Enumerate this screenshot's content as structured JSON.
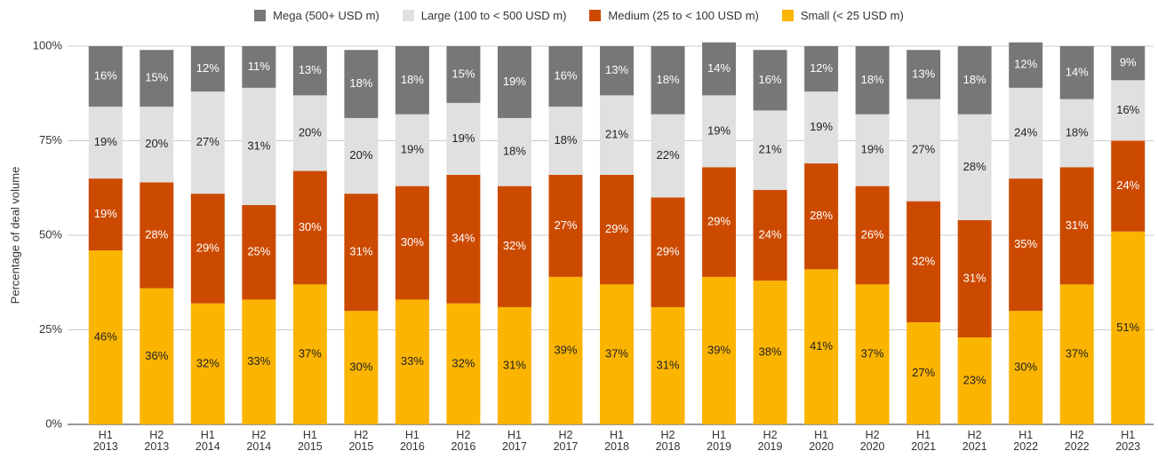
{
  "chart_data": {
    "type": "stacked_bar",
    "y_label": "Percentage of deal volume",
    "categories": [
      "H1 2013",
      "H2 2013",
      "H1 2014",
      "H2 2014",
      "H1 2015",
      "H2 2015",
      "H1 2016",
      "H2 2016",
      "H1 2017",
      "H2 2017",
      "H1 2018",
      "H2 2018",
      "H1 2019",
      "H2 2019",
      "H1 2020",
      "H2 2020",
      "H1 2021",
      "H2 2021",
      "H1 2022",
      "H2 2022",
      "H1 2023"
    ],
    "series": [
      {
        "name": "Small (< 25 USD m)",
        "color": "#fbb400",
        "label_color": "#222",
        "values": [
          46,
          36,
          32,
          33,
          37,
          30,
          33,
          32,
          31,
          39,
          37,
          31,
          39,
          38,
          41,
          37,
          27,
          23,
          30,
          37,
          51
        ],
        "value_labels": [
          "46%",
          "36%",
          "32%",
          "33%",
          "37%",
          "30%",
          "33%",
          "32%",
          "31%",
          "39%",
          "37%",
          "31%",
          "39%",
          "38%",
          "41%",
          "37%",
          "27%",
          "23%",
          "30%",
          "37%",
          "51%"
        ]
      },
      {
        "name": "Medium (25 to < 100 USD m)",
        "color": "#cc4a00",
        "label_color": "#fff",
        "values": [
          19,
          28,
          29,
          25,
          30,
          31,
          30,
          34,
          32,
          27,
          29,
          29,
          29,
          24,
          28,
          26,
          32,
          31,
          35,
          31,
          24
        ],
        "value_labels": [
          "19%",
          "28%",
          "29%",
          "25%",
          "30%",
          "31%",
          "30%",
          "34%",
          "32%",
          "27%",
          "29%",
          "29%",
          "29%",
          "24%",
          "28%",
          "26%",
          "32%",
          "31%",
          "35%",
          "31%",
          "24%"
        ]
      },
      {
        "name": "Large (100 to < 500 USD m)",
        "color": "#e0e0e0",
        "label_color": "#222",
        "values": [
          19,
          20,
          27,
          31,
          20,
          20,
          19,
          19,
          18,
          18,
          21,
          22,
          19,
          21,
          19,
          19,
          27,
          28,
          24,
          18,
          16
        ],
        "value_labels": [
          "19%",
          "20%",
          "27%",
          "31%",
          "20%",
          "20%",
          "19%",
          "19%",
          "18%",
          "18%",
          "21%",
          "22%",
          "19%",
          "21%",
          "19%",
          "19%",
          "27%",
          "28%",
          "24%",
          "18%",
          "16%"
        ]
      },
      {
        "name": "Mega (500+ USD m)",
        "color": "#777777",
        "label_color": "#fff",
        "values": [
          16,
          15,
          12,
          11,
          13,
          18,
          18,
          15,
          19,
          16,
          13,
          18,
          14,
          16,
          12,
          18,
          13,
          18,
          12,
          14,
          9
        ],
        "value_labels": [
          "16%",
          "15%",
          "12%",
          "11%",
          "13%",
          "18%",
          "18%",
          "15%",
          "19%",
          "16%",
          "13%",
          "18%",
          "14%",
          "16%",
          "12%",
          "18%",
          "13%",
          "18%",
          "12%",
          "14%",
          "9%"
        ]
      }
    ],
    "legend_order": [
      3,
      2,
      1,
      0
    ],
    "ylim": [
      0,
      100
    ],
    "yticks": [
      {
        "value": 0,
        "label": "0%"
      },
      {
        "value": 25,
        "label": "25%"
      },
      {
        "value": 50,
        "label": "50%"
      },
      {
        "value": 75,
        "label": "75%"
      },
      {
        "value": 100,
        "label": "100%"
      }
    ],
    "grid": true
  }
}
